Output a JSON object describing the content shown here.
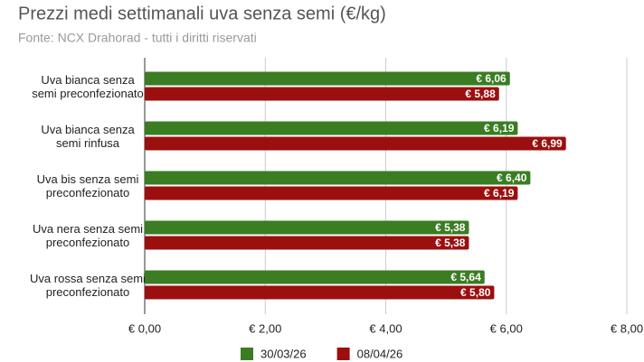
{
  "chart_data": {
    "type": "bar",
    "orientation": "horizontal",
    "title": "Prezzi medi settimanali uva senza semi (€/kg)",
    "subtitle": "Fonte: NCX Drahorad - tutti i diritti riservati",
    "categories": [
      "Uva bianca senza semi preconfezionato",
      "Uva bianca senza semi rinfusa",
      "Uva bis senza semi preconfezionato",
      "Uva nera senza semi preconfezionato",
      "Uva rossa senza semi preconfezionato"
    ],
    "series": [
      {
        "name": "30/03/26",
        "color": "#3a7d22",
        "values": [
          6.06,
          6.19,
          6.4,
          5.38,
          5.64
        ],
        "value_labels": [
          "€ 6,06",
          "€ 6,19",
          "€ 6,40",
          "€ 5,38",
          "€ 5,64"
        ]
      },
      {
        "name": "08/04/26",
        "color": "#9c0f0f",
        "values": [
          5.88,
          6.99,
          6.19,
          5.38,
          5.8
        ],
        "value_labels": [
          "€ 5,88",
          "€ 6,99",
          "€ 6,19",
          "€ 5,38",
          "€ 5,80"
        ]
      }
    ],
    "xlim": [
      0,
      8
    ],
    "xticks": [
      {
        "value": 0,
        "label": "€ 0,00"
      },
      {
        "value": 2,
        "label": "€ 2,00"
      },
      {
        "value": 4,
        "label": "€ 4,00"
      },
      {
        "value": 6,
        "label": "€ 6,00"
      },
      {
        "value": 8,
        "label": "€ 8,00"
      }
    ],
    "grid": true,
    "legend": "bottom"
  }
}
